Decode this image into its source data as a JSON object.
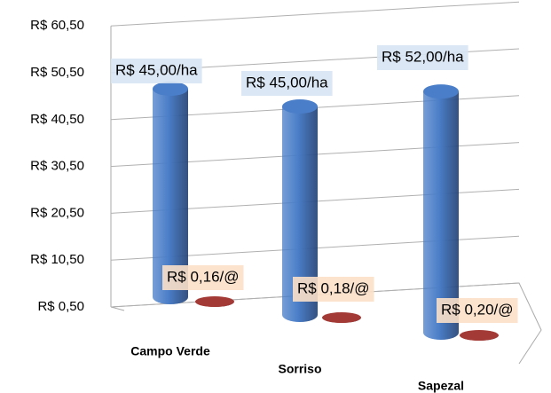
{
  "chart_data": {
    "type": "bar3d",
    "categories": [
      "Campo Verde",
      "Sorriso",
      "Sapezal"
    ],
    "series": [
      {
        "color": "#4a7ec8",
        "values": [
          45,
          45,
          52
        ],
        "value_labels": [
          "R$ 45,00/ha",
          "R$ 45,00/ha",
          "R$ 52,00/ha"
        ],
        "label_bg": "#d7e4f3"
      },
      {
        "color": "#a33a35",
        "values": [
          0.16,
          0.18,
          0.2
        ],
        "value_labels": [
          "R$ 0,16/@",
          "R$ 0,18/@",
          "R$ 0,20/@"
        ],
        "label_bg": "#fbe0c9"
      }
    ],
    "ylim": [
      0.5,
      60.5
    ],
    "yticks": [
      {
        "value": 0.5,
        "label": "R$ 0,50"
      },
      {
        "value": 10.5,
        "label": "R$ 10,50"
      },
      {
        "value": 20.5,
        "label": "R$ 20,50"
      },
      {
        "value": 30.5,
        "label": "R$ 30,50"
      },
      {
        "value": 40.5,
        "label": "R$ 40,50"
      },
      {
        "value": 50.5,
        "label": "R$ 50,50"
      },
      {
        "value": 60.5,
        "label": "R$ 60,50"
      }
    ],
    "grid": true
  }
}
